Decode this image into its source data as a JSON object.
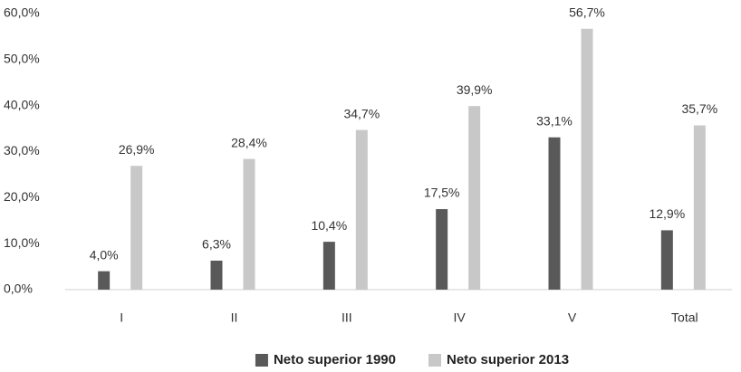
{
  "chart_data": {
    "type": "bar",
    "categories": [
      "I",
      "II",
      "III",
      "IV",
      "V",
      "Total"
    ],
    "series": [
      {
        "name": "Neto superior 1990",
        "color": "#595959",
        "values": [
          4.0,
          6.3,
          10.4,
          17.5,
          33.1,
          12.9
        ],
        "value_labels": [
          "4,0%",
          "6,3%",
          "10,4%",
          "17,5%",
          "33,1%",
          "12,9%"
        ]
      },
      {
        "name": "Neto superior 2013",
        "color": "#c8c8c8",
        "values": [
          26.9,
          28.4,
          34.7,
          39.9,
          56.7,
          35.7
        ],
        "value_labels": [
          "26,9%",
          "28,4%",
          "34,7%",
          "39,9%",
          "56,7%",
          "35,7%"
        ]
      }
    ],
    "ylim": [
      0,
      60
    ],
    "yticks": [
      {
        "value": 0,
        "label": "0,0%"
      },
      {
        "value": 10,
        "label": "10,0%"
      },
      {
        "value": 20,
        "label": "20,0%"
      },
      {
        "value": 30,
        "label": "30,0%"
      },
      {
        "value": 40,
        "label": "40,0%"
      },
      {
        "value": 50,
        "label": "50,0%"
      },
      {
        "value": 60,
        "label": "60,0%"
      }
    ],
    "grid": false,
    "legend": "bottom"
  }
}
